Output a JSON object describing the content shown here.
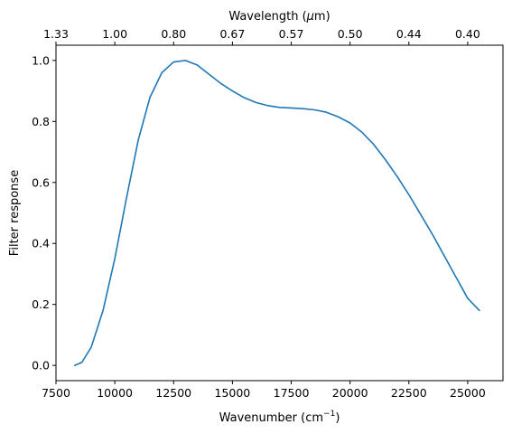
{
  "chart_data": {
    "type": "line",
    "title": "",
    "xlabel_main": "Wavenumber (cm",
    "xlabel_sup": "−1",
    "xlabel_close": ")",
    "ylabel": "Filter response",
    "top_xlabel_main": "Wavelength (",
    "top_xlabel_mu": "μ",
    "top_xlabel_close": "m)",
    "xlim": [
      7500,
      26500
    ],
    "ylim": [
      -0.05,
      1.05
    ],
    "x_ticks": [
      7500,
      10000,
      12500,
      15000,
      17500,
      20000,
      22500,
      25000
    ],
    "x_tick_labels": [
      "7500",
      "10000",
      "12500",
      "15000",
      "17500",
      "20000",
      "22500",
      "25000"
    ],
    "y_ticks": [
      0.0,
      0.2,
      0.4,
      0.6,
      0.8,
      1.0
    ],
    "y_tick_labels": [
      "0.0",
      "0.2",
      "0.4",
      "0.6",
      "0.8",
      "1.0"
    ],
    "top_ticks": [
      {
        "wavenumber": 7500,
        "label": "1.33"
      },
      {
        "wavenumber": 10000,
        "label": "1.00"
      },
      {
        "wavenumber": 12500,
        "label": "0.80"
      },
      {
        "wavenumber": 15000,
        "label": "0.67"
      },
      {
        "wavenumber": 17500,
        "label": "0.57"
      },
      {
        "wavenumber": 20000,
        "label": "0.50"
      },
      {
        "wavenumber": 22500,
        "label": "0.44"
      },
      {
        "wavenumber": 25000,
        "label": "0.40"
      }
    ],
    "grid": false,
    "series": [
      {
        "color": "#1f77b4",
        "x": [
          8300,
          8600,
          9000,
          9500,
          10000,
          10500,
          11000,
          11500,
          12000,
          12500,
          13000,
          13500,
          14000,
          14500,
          15000,
          15500,
          16000,
          16500,
          17000,
          17500,
          18000,
          18500,
          19000,
          19500,
          20000,
          20500,
          21000,
          21500,
          22000,
          22500,
          23000,
          23500,
          24000,
          24500,
          25000,
          25500
        ],
        "y": [
          0.0,
          0.01,
          0.06,
          0.18,
          0.35,
          0.55,
          0.74,
          0.88,
          0.96,
          0.995,
          1.0,
          0.985,
          0.955,
          0.925,
          0.9,
          0.878,
          0.862,
          0.852,
          0.846,
          0.844,
          0.842,
          0.838,
          0.83,
          0.815,
          0.795,
          0.765,
          0.725,
          0.675,
          0.62,
          0.56,
          0.495,
          0.43,
          0.36,
          0.29,
          0.22,
          0.18
        ]
      }
    ]
  }
}
